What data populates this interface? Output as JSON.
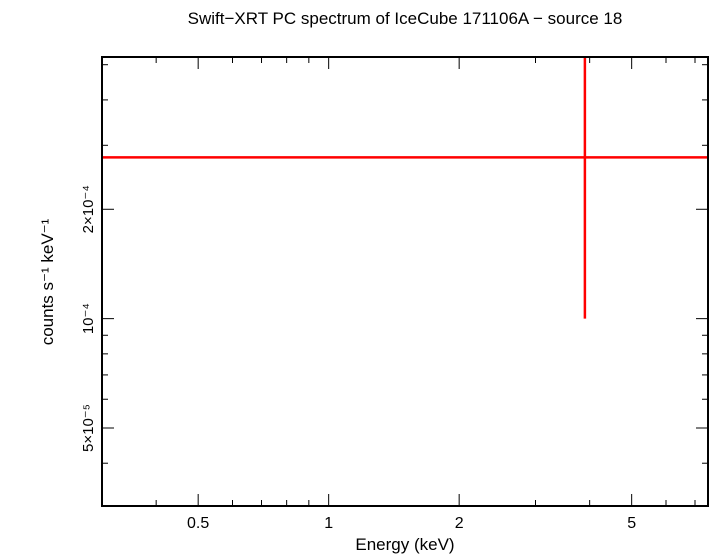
{
  "chart_data": {
    "type": "scatter",
    "title": "Swift−XRT PC spectrum of IceCube 171106A − source 18",
    "xlabel": "Energy (keV)",
    "ylabel": "counts s⁻¹ keV⁻¹",
    "xscale": "log",
    "yscale": "log",
    "xlim": [
      0.3,
      7.5
    ],
    "ylim": [
      3.05e-05,
      0.000525
    ],
    "x_ticks": [
      {
        "value": 0.5,
        "label": "0.5"
      },
      {
        "value": 1,
        "label": "1"
      },
      {
        "value": 2,
        "label": "2"
      },
      {
        "value": 5,
        "label": "5"
      }
    ],
    "y_ticks": [
      {
        "value": 5e-05,
        "label": "5×10⁻⁵"
      },
      {
        "value": 0.0001,
        "label": "10⁻⁴"
      },
      {
        "value": 0.0002,
        "label": "2×10⁻⁴"
      }
    ],
    "series": [
      {
        "color": "#ff0000",
        "points": [
          {
            "x": 3.9,
            "x_low": 0.3,
            "x_high": 7.5,
            "y": 0.000278,
            "y_low": 0.0001,
            "y_high": 0.000525
          }
        ]
      }
    ]
  }
}
